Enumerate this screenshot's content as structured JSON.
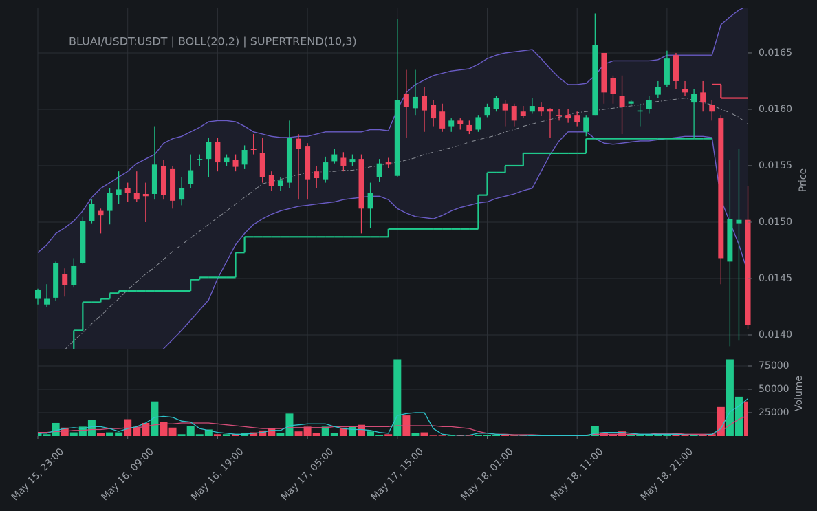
{
  "chart_data": {
    "type": "candlestick",
    "title": "BLUAI/USDT:USDT | BOLL(20,2) | SUPERTREND(10,3)",
    "ylabel": "Price",
    "categories": [
      "May 15, 23:00",
      null,
      null,
      null,
      null,
      null,
      null,
      null,
      null,
      null,
      "May 16, 09:00",
      null,
      null,
      null,
      null,
      null,
      null,
      null,
      null,
      null,
      "May 16, 19:00",
      null,
      null,
      null,
      null,
      null,
      null,
      null,
      null,
      null,
      "May 17, 05:00",
      null,
      null,
      null,
      null,
      null,
      null,
      null,
      null,
      null,
      "May 17, 15:00",
      null,
      null,
      null,
      null,
      null,
      null,
      null,
      null,
      null,
      "May 18, 01:00",
      null,
      null,
      null,
      null,
      null,
      null,
      null,
      null,
      null,
      "May 18, 11:00",
      null,
      null,
      null,
      null,
      null,
      null,
      null,
      null,
      null,
      "May 18, 21:00",
      null,
      null,
      null,
      null,
      null,
      null,
      null,
      null,
      null
    ],
    "open": [
      0.01432,
      0.01427,
      0.01433,
      0.01454,
      0.01444,
      0.01464,
      0.01501,
      0.0151,
      0.0151,
      0.01524,
      0.0153,
      0.01526,
      0.01525,
      0.01525,
      0.0155,
      0.01547,
      0.0152,
      0.01534,
      0.01555,
      0.01556,
      0.01571,
      0.01553,
      0.01555,
      0.01551,
      0.01565,
      0.01561,
      0.01542,
      0.01532,
      0.01535,
      0.01574,
      0.01567,
      0.01545,
      0.01538,
      0.01554,
      0.01557,
      0.01553,
      0.01556,
      0.01512,
      0.0154,
      0.01553,
      0.01541,
      0.01614,
      0.01601,
      0.01612,
      0.01604,
      0.01598,
      0.01585,
      0.0159,
      0.01586,
      0.01582,
      0.01595,
      0.016,
      0.01605,
      0.01603,
      0.01598,
      0.01598,
      0.01602,
      0.016,
      0.01595,
      0.01595,
      0.01595,
      0.0158,
      0.01595,
      0.0165,
      0.01628,
      0.01612,
      0.01605,
      0.01598,
      0.016,
      0.01613,
      0.01622,
      0.01648,
      0.01618,
      0.01606,
      0.01615,
      0.01604,
      0.01592,
      0.01465,
      0.01499,
      0.01502
    ],
    "high": [
      0.01441,
      0.01445,
      0.01465,
      0.01459,
      0.01468,
      0.01505,
      0.0152,
      0.01512,
      0.0153,
      0.01545,
      0.01535,
      0.01545,
      0.01535,
      0.01585,
      0.01555,
      0.0155,
      0.0154,
      0.0156,
      0.0156,
      0.01575,
      0.01575,
      0.0156,
      0.0156,
      0.01568,
      0.01578,
      0.01575,
      0.01545,
      0.0154,
      0.0159,
      0.01578,
      0.0157,
      0.0155,
      0.01558,
      0.01565,
      0.01562,
      0.0156,
      0.0156,
      0.01535,
      0.01556,
      0.01557,
      0.0168,
      0.01635,
      0.01635,
      0.0162,
      0.01608,
      0.01605,
      0.01592,
      0.01592,
      0.0159,
      0.01595,
      0.01605,
      0.01612,
      0.01608,
      0.01605,
      0.01603,
      0.0161,
      0.01606,
      0.01601,
      0.016,
      0.016,
      0.01598,
      0.01595,
      0.01685,
      0.0165,
      0.0163,
      0.0163,
      0.01608,
      0.01605,
      0.01612,
      0.01625,
      0.01652,
      0.0165,
      0.01625,
      0.01618,
      0.01625,
      0.01608,
      0.01595,
      0.01555,
      0.01565,
      0.01532
    ],
    "low": [
      0.01427,
      0.01425,
      0.0143,
      0.01434,
      0.01442,
      0.01463,
      0.01499,
      0.0149,
      0.01498,
      0.01516,
      0.01518,
      0.01518,
      0.015,
      0.0152,
      0.0152,
      0.01512,
      0.01515,
      0.0153,
      0.0155,
      0.0154,
      0.01545,
      0.0155,
      0.01545,
      0.01547,
      0.0156,
      0.01535,
      0.01528,
      0.01528,
      0.0153,
      0.0152,
      0.0152,
      0.0153,
      0.01535,
      0.01552,
      0.01545,
      0.0155,
      0.0149,
      0.01495,
      0.01536,
      0.01548,
      0.0154,
      0.01575,
      0.01595,
      0.0158,
      0.01585,
      0.0158,
      0.0158,
      0.01582,
      0.01578,
      0.0158,
      0.01593,
      0.01598,
      0.01585,
      0.01585,
      0.01592,
      0.01596,
      0.01594,
      0.01575,
      0.0159,
      0.01588,
      0.01585,
      0.01576,
      0.01595,
      0.01605,
      0.01605,
      0.01578,
      0.01604,
      0.01585,
      0.01596,
      0.0161,
      0.0162,
      0.01618,
      0.01612,
      0.01575,
      0.01598,
      0.0159,
      0.01445,
      0.0139,
      0.01395,
      0.01405
    ],
    "close": [
      0.0144,
      0.01432,
      0.01464,
      0.01444,
      0.01461,
      0.01501,
      0.01516,
      0.01506,
      0.01526,
      0.01529,
      0.01526,
      0.0152,
      0.01523,
      0.01551,
      0.01524,
      0.01519,
      0.0153,
      0.01546,
      0.01556,
      0.01571,
      0.01553,
      0.01557,
      0.01549,
      0.01564,
      0.01564,
      0.0154,
      0.01532,
      0.01537,
      0.01575,
      0.01565,
      0.01538,
      0.01539,
      0.01553,
      0.0156,
      0.0155,
      0.01556,
      0.01512,
      0.01526,
      0.01552,
      0.01551,
      0.01608,
      0.01602,
      0.01611,
      0.01599,
      0.01592,
      0.01583,
      0.0159,
      0.01587,
      0.01581,
      0.01593,
      0.01602,
      0.0161,
      0.01599,
      0.0159,
      0.01594,
      0.01603,
      0.01598,
      0.01598,
      0.01594,
      0.01592,
      0.01589,
      0.01593,
      0.01657,
      0.01615,
      0.01614,
      0.01602,
      0.01607,
      0.01599,
      0.01608,
      0.0162,
      0.01645,
      0.01625,
      0.01615,
      0.01614,
      0.01606,
      0.01598,
      0.01468,
      0.01503,
      0.01502,
      0.01409
    ],
    "up_color": "#1fc98c",
    "down_color": "#f0465e",
    "ylim": [
      0.013872,
      0.016896
    ],
    "yticks": [
      {
        "value": 0.014,
        "label": "0.0140"
      },
      0.0145,
      {
        "value": 0.015,
        "label": "0.0150"
      },
      0.0155,
      {
        "value": 0.016,
        "label": "0.0160"
      },
      0.0165
    ],
    "grid": true,
    "bollinger": {
      "color": "#6a5cc6",
      "fill": "#1c1e2b",
      "middle_color": "#8b8f97",
      "upper": [
        0.01473,
        0.0148,
        0.0149,
        0.01495,
        0.01501,
        0.0151,
        0.01522,
        0.0153,
        0.01535,
        0.0154,
        0.01545,
        0.01552,
        0.01556,
        0.0156,
        0.0157,
        0.01574,
        0.01576,
        0.0158,
        0.01584,
        0.01589,
        0.0159,
        0.0159,
        0.01589,
        0.01585,
        0.0158,
        0.01578,
        0.01576,
        0.01575,
        0.01575,
        0.01576,
        0.01576,
        0.01578,
        0.0158,
        0.0158,
        0.0158,
        0.0158,
        0.0158,
        0.01582,
        0.01582,
        0.01581,
        0.016,
        0.01615,
        0.01622,
        0.01626,
        0.0163,
        0.01632,
        0.01634,
        0.01635,
        0.01636,
        0.0164,
        0.01645,
        0.01648,
        0.0165,
        0.01651,
        0.01652,
        0.01653,
        0.01645,
        0.01636,
        0.01628,
        0.01622,
        0.01622,
        0.01623,
        0.0163,
        0.0164,
        0.01643,
        0.01643,
        0.01643,
        0.01643,
        0.01643,
        0.01644,
        0.01648,
        0.01648,
        0.01648,
        0.01648,
        0.01648,
        0.01648,
        0.01675,
        0.01682,
        0.01688,
        0.01692
      ],
      "middle": [
        0.01365,
        0.01372,
        0.0138,
        0.01387,
        0.01395,
        0.01402,
        0.0141,
        0.01417,
        0.01425,
        0.01432,
        0.0144,
        0.01447,
        0.01454,
        0.0146,
        0.01467,
        0.01474,
        0.0148,
        0.01486,
        0.01492,
        0.01498,
        0.01504,
        0.0151,
        0.01516,
        0.01522,
        0.01528,
        0.01534,
        0.01536,
        0.01538,
        0.0154,
        0.01542,
        0.01544,
        0.01544,
        0.01545,
        0.01545,
        0.01546,
        0.01546,
        0.01547,
        0.01549,
        0.0155,
        0.01552,
        0.01553,
        0.01555,
        0.01557,
        0.0156,
        0.01562,
        0.01564,
        0.01566,
        0.01568,
        0.01571,
        0.01573,
        0.01575,
        0.01577,
        0.0158,
        0.01582,
        0.01585,
        0.01587,
        0.01589,
        0.01591,
        0.01593,
        0.01595,
        0.01597,
        0.01598,
        0.01599,
        0.016,
        0.01601,
        0.01602,
        0.01603,
        0.01604,
        0.01606,
        0.01607,
        0.01608,
        0.01609,
        0.0161,
        0.01608,
        0.01606,
        0.01604,
        0.016,
        0.01597,
        0.01593,
        0.01587
      ],
      "lower": [
        0.0128,
        0.01286,
        0.01292,
        0.01298,
        0.01304,
        0.0131,
        0.01316,
        0.01322,
        0.01328,
        0.01334,
        0.0134,
        0.01353,
        0.01367,
        0.0138,
        0.01388,
        0.01396,
        0.01404,
        0.01413,
        0.01422,
        0.01431,
        0.0145,
        0.01465,
        0.0148,
        0.0149,
        0.01498,
        0.01503,
        0.01507,
        0.0151,
        0.01512,
        0.01514,
        0.01515,
        0.01516,
        0.01517,
        0.01518,
        0.0152,
        0.01521,
        0.01522,
        0.01523,
        0.01523,
        0.0152,
        0.01512,
        0.01508,
        0.01505,
        0.01504,
        0.01503,
        0.01506,
        0.0151,
        0.01513,
        0.01515,
        0.01517,
        0.01518,
        0.01521,
        0.01523,
        0.01525,
        0.01528,
        0.0153,
        0.01545,
        0.0156,
        0.01572,
        0.0158,
        0.0158,
        0.0158,
        0.01574,
        0.0157,
        0.01569,
        0.0157,
        0.01571,
        0.01572,
        0.01572,
        0.01573,
        0.01574,
        0.01575,
        0.01576,
        0.01576,
        0.01576,
        0.01575,
        0.0152,
        0.015,
        0.0148,
        0.01455
      ]
    },
    "supertrend": {
      "up_color": "#1fc98c",
      "down_color": "#f0465e",
      "up": [
        null,
        null,
        null,
        0.0137,
        0.01404,
        0.01429,
        0.01429,
        0.01432,
        0.01437,
        0.01439,
        0.01439,
        0.01439,
        0.01439,
        0.01439,
        0.01439,
        0.01439,
        0.01439,
        0.01449,
        0.01451,
        0.01451,
        0.01451,
        0.01451,
        0.01473,
        0.01487,
        0.01487,
        0.01487,
        0.01487,
        0.01487,
        0.01487,
        0.01487,
        0.01487,
        0.01487,
        0.01487,
        0.01487,
        0.01487,
        0.01487,
        0.01487,
        0.01487,
        0.01487,
        0.01494,
        0.01494,
        0.01494,
        0.01494,
        0.01494,
        0.01494,
        0.01494,
        0.01494,
        0.01494,
        0.01494,
        0.01524,
        0.01544,
        0.01544,
        0.0155,
        0.0155,
        0.01561,
        0.01561,
        0.01561,
        0.01561,
        0.01561,
        0.01561,
        0.01561,
        0.01574,
        0.01574,
        0.01574,
        0.01574,
        0.01574,
        0.01574,
        0.01574,
        0.01574,
        0.01574,
        0.01574,
        0.01574,
        0.01574,
        0.01574,
        0.01574,
        0.01574,
        null,
        null,
        null,
        null
      ],
      "down": [
        null,
        null,
        null,
        null,
        null,
        null,
        null,
        null,
        null,
        null,
        null,
        null,
        null,
        null,
        null,
        null,
        null,
        null,
        null,
        null,
        null,
        null,
        null,
        null,
        null,
        null,
        null,
        null,
        null,
        null,
        null,
        null,
        null,
        null,
        null,
        null,
        null,
        null,
        null,
        null,
        null,
        null,
        null,
        null,
        null,
        null,
        null,
        null,
        null,
        null,
        null,
        null,
        null,
        null,
        null,
        null,
        null,
        null,
        null,
        null,
        null,
        null,
        null,
        null,
        null,
        null,
        null,
        null,
        null,
        null,
        null,
        null,
        null,
        null,
        null,
        0.01622,
        0.0161,
        0.0161,
        0.0161,
        0.0161
      ]
    },
    "volume": {
      "ylabel": "Volume",
      "ylim": [
        0,
        87500
      ],
      "yticks": [
        25000,
        50000,
        75000
      ],
      "values": [
        3000,
        2000,
        14000,
        9000,
        4000,
        10000,
        17000,
        3000,
        4000,
        4000,
        18000,
        10000,
        14000,
        37000,
        15000,
        9000,
        2000,
        11000,
        2000,
        7000,
        2000,
        2000,
        2000,
        3000,
        4000,
        6000,
        8000,
        3000,
        24000,
        5000,
        10000,
        3000,
        10000,
        3000,
        9000,
        10000,
        12000,
        5000,
        1000,
        2000,
        82000,
        22000,
        3000,
        4000,
        500,
        500,
        600,
        400,
        500,
        800,
        1000,
        1000,
        800,
        600,
        500,
        500,
        400,
        400,
        500,
        400,
        500,
        600,
        11000,
        4000,
        2000,
        5000,
        1000,
        2000,
        2000,
        2000,
        2000,
        3000,
        1000,
        1000,
        1000,
        2000,
        31000,
        82000,
        42000,
        37000
      ],
      "ma_fast": {
        "color": "#2ec4cc",
        "values": [
          3000,
          3000,
          6000,
          8000,
          9000,
          8000,
          10000,
          10000,
          8000,
          5000,
          8000,
          10000,
          14000,
          20000,
          21000,
          20000,
          16000,
          15000,
          8000,
          6000,
          4000,
          3000,
          2000,
          2000,
          3000,
          4000,
          6000,
          6000,
          11000,
          12000,
          13000,
          13000,
          13000,
          10000,
          8000,
          7000,
          7000,
          6000,
          4000,
          3000,
          22000,
          24000,
          25000,
          25000,
          8000,
          2000,
          1000,
          800,
          1000,
          3000,
          3000,
          2000,
          1500,
          1000,
          800,
          600,
          500,
          500,
          500,
          500,
          500,
          500,
          3000,
          4000,
          4000,
          4000,
          3000,
          2000,
          2000,
          2000,
          2000,
          2000,
          1500,
          1000,
          1000,
          2000,
          8000,
          26000,
          32000,
          40000
        ]
      },
      "ma_slow": {
        "color": "#d44d78",
        "values": [
          4000,
          4000,
          5000,
          5000,
          6000,
          6000,
          7000,
          7000,
          8000,
          8000,
          9000,
          9000,
          10000,
          12000,
          13000,
          13000,
          14000,
          14000,
          14000,
          14000,
          13000,
          12000,
          11000,
          10000,
          9000,
          8000,
          8000,
          8000,
          9000,
          9000,
          9000,
          9000,
          9000,
          10000,
          10000,
          10000,
          10000,
          10000,
          10000,
          10000,
          11000,
          11000,
          11000,
          11000,
          11000,
          10000,
          10000,
          9000,
          8000,
          5000,
          3000,
          2000,
          2000,
          1500,
          1500,
          1500,
          1000,
          1000,
          1000,
          1000,
          1000,
          1000,
          2000,
          2000,
          2000,
          2000,
          2000,
          2000,
          2000,
          3000,
          3000,
          3000,
          2000,
          2000,
          2000,
          2000,
          5000,
          12000,
          18000,
          22000
        ]
      }
    }
  }
}
